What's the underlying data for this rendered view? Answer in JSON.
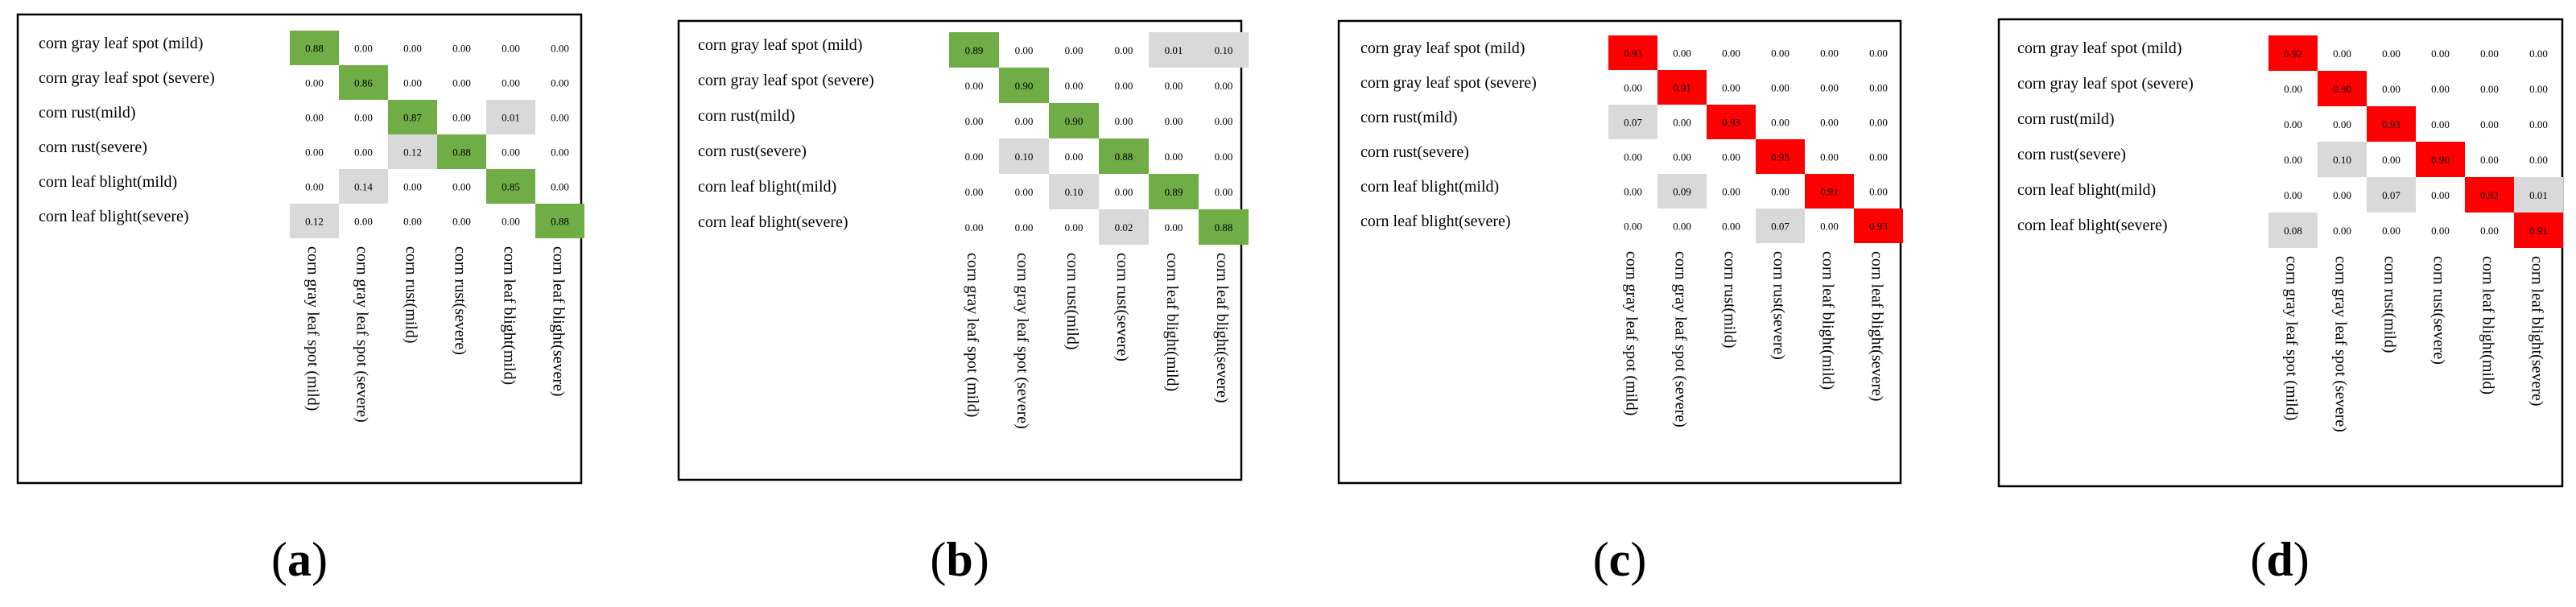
{
  "colors": {
    "highlight_green": "#70ad47",
    "highlight_red": "#ff0000",
    "off_diagonal_gray": "#d9d9d9",
    "frame": "#000000"
  },
  "chart_data": [
    {
      "type": "heatmap",
      "panel": "a",
      "caption": {
        "open": "(",
        "letter": "a",
        "close": ")"
      },
      "rows": [
        "corn gray leaf spot (mild)",
        "corn gray leaf spot (severe)",
        "corn rust(mild)",
        "corn rust(severe)",
        "corn leaf blight(mild)",
        "corn leaf blight(severe)"
      ],
      "columns": [
        "corn gray leaf spot (mild)",
        "corn gray leaf spot (severe)",
        "corn rust(mild)",
        "corn rust(severe)",
        "corn leaf blight(mild)",
        "corn leaf blight(severe)"
      ],
      "values": [
        [
          0.88,
          0.0,
          0.0,
          0.0,
          0.0,
          0.0
        ],
        [
          0.0,
          0.86,
          0.0,
          0.0,
          0.0,
          0.0
        ],
        [
          0.0,
          0.0,
          0.87,
          0.0,
          0.01,
          0.0
        ],
        [
          0.0,
          0.0,
          0.12,
          0.88,
          0.0,
          0.0
        ],
        [
          0.0,
          0.14,
          0.0,
          0.0,
          0.85,
          0.0
        ],
        [
          0.12,
          0.0,
          0.0,
          0.0,
          0.0,
          0.88
        ]
      ],
      "diagonal_color": "#70ad47",
      "off_diagonal_color": "#d9d9d9"
    },
    {
      "type": "heatmap",
      "panel": "b",
      "caption": {
        "open": "(",
        "letter": "b",
        "close": ")"
      },
      "rows": [
        "corn gray leaf spot (mild)",
        "corn gray leaf spot (severe)",
        "corn rust(mild)",
        "corn rust(severe)",
        "corn leaf blight(mild)",
        "corn leaf blight(severe)"
      ],
      "columns": [
        "corn gray leaf spot (mild)",
        "corn gray leaf spot (severe)",
        "corn rust(mild)",
        "corn rust(severe)",
        "corn leaf blight(mild)",
        "corn leaf blight(severe)"
      ],
      "values": [
        [
          0.89,
          0.0,
          0.0,
          0.0,
          0.01,
          0.1
        ],
        [
          0.0,
          0.9,
          0.0,
          0.0,
          0.0,
          0.0
        ],
        [
          0.0,
          0.0,
          0.9,
          0.0,
          0.0,
          0.0
        ],
        [
          0.0,
          0.1,
          0.0,
          0.88,
          0.0,
          0.0
        ],
        [
          0.0,
          0.0,
          0.1,
          0.0,
          0.89,
          0.0
        ],
        [
          0.0,
          0.0,
          0.0,
          0.02,
          0.0,
          0.88
        ]
      ],
      "diagonal_color": "#70ad47",
      "off_diagonal_color": "#d9d9d9"
    },
    {
      "type": "heatmap",
      "panel": "c",
      "caption": {
        "open": "(",
        "letter": "c",
        "close": ")"
      },
      "rows": [
        "corn gray leaf spot (mild)",
        "corn gray leaf spot (severe)",
        "corn rust(mild)",
        "corn rust(severe)",
        "corn leaf blight(mild)",
        "corn leaf blight(severe)"
      ],
      "columns": [
        "corn gray leaf spot (mild)",
        "corn gray leaf spot (severe)",
        "corn rust(mild)",
        "corn rust(severe)",
        "corn leaf blight(mild)",
        "corn leaf blight(severe)"
      ],
      "values": [
        [
          0.93,
          0.0,
          0.0,
          0.0,
          0.0,
          0.0
        ],
        [
          0.0,
          0.91,
          0.0,
          0.0,
          0.0,
          0.0
        ],
        [
          0.07,
          0.0,
          0.93,
          0.0,
          0.0,
          0.0
        ],
        [
          0.0,
          0.0,
          0.0,
          0.93,
          0.0,
          0.0
        ],
        [
          0.0,
          0.09,
          0.0,
          0.0,
          0.91,
          0.0
        ],
        [
          0.0,
          0.0,
          0.0,
          0.07,
          0.0,
          0.93
        ]
      ],
      "diagonal_color": "#ff0000",
      "off_diagonal_color": "#d9d9d9"
    },
    {
      "type": "heatmap",
      "panel": "d",
      "caption": {
        "open": "(",
        "letter": "d",
        "close": ")"
      },
      "rows": [
        "corn gray leaf spot (mild)",
        "corn gray leaf spot (severe)",
        "corn rust(mild)",
        "corn rust(severe)",
        "corn leaf blight(mild)",
        "corn leaf blight(severe)"
      ],
      "columns": [
        "corn gray leaf spot (mild)",
        "corn gray leaf spot (severe)",
        "corn rust(mild)",
        "corn rust(severe)",
        "corn leaf blight(mild)",
        "corn leaf blight(severe)"
      ],
      "values": [
        [
          0.92,
          0.0,
          0.0,
          0.0,
          0.0,
          0.0
        ],
        [
          0.0,
          0.9,
          0.0,
          0.0,
          0.0,
          0.0
        ],
        [
          0.0,
          0.0,
          0.93,
          0.0,
          0.0,
          0.0
        ],
        [
          0.0,
          0.1,
          0.0,
          0.9,
          0.0,
          0.0
        ],
        [
          0.0,
          0.0,
          0.07,
          0.0,
          0.92,
          0.01
        ],
        [
          0.08,
          0.0,
          0.0,
          0.0,
          0.0,
          0.91
        ]
      ],
      "diagonal_color": "#ff0000",
      "off_diagonal_color": "#d9d9d9"
    }
  ]
}
